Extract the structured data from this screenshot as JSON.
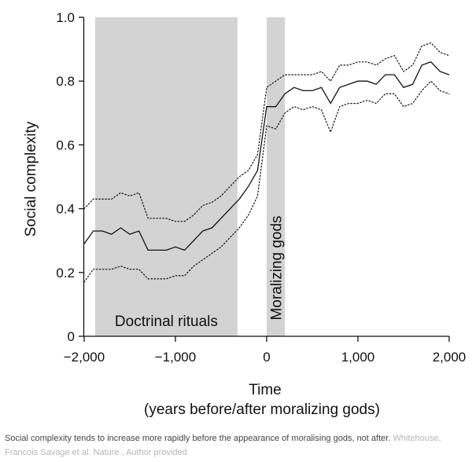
{
  "chart_data": {
    "type": "line",
    "title": "",
    "xlabel": "Time",
    "xlabel_sub": "(years before/after moralizing gods)",
    "ylabel": "Social complexity",
    "xlim": [
      -2000,
      2000
    ],
    "ylim": [
      0,
      1.0
    ],
    "xticks": [
      -2000,
      -1000,
      0,
      1000,
      2000
    ],
    "xtick_labels": [
      "−2,000",
      "−1,000",
      "0",
      "1,000",
      "2,000"
    ],
    "yticks": [
      0,
      0.2,
      0.4,
      0.6,
      0.8,
      1.0
    ],
    "ytick_labels": [
      "0",
      "0.2",
      "0.4",
      "0.6",
      "0.8",
      "1.0"
    ],
    "grid": false,
    "shaded_regions": [
      {
        "label": "Doctrinal rituals",
        "x_start": -1880,
        "x_end": -320,
        "color": "#d3d3d3"
      },
      {
        "label": "Moralizing gods",
        "x_start": 0,
        "x_end": 200,
        "color": "#d3d3d3"
      }
    ],
    "series": [
      {
        "style": "solid",
        "x": [
          -2000,
          -1900,
          -1800,
          -1700,
          -1600,
          -1500,
          -1400,
          -1300,
          -1200,
          -1100,
          -1000,
          -900,
          -800,
          -700,
          -600,
          -500,
          -400,
          -300,
          -200,
          -100,
          0,
          100,
          200,
          300,
          400,
          500,
          600,
          700,
          800,
          900,
          1000,
          1100,
          1200,
          1300,
          1400,
          1500,
          1600,
          1700,
          1800,
          1900,
          2000
        ],
        "values": [
          0.29,
          0.33,
          0.33,
          0.32,
          0.34,
          0.32,
          0.33,
          0.27,
          0.27,
          0.27,
          0.28,
          0.27,
          0.3,
          0.33,
          0.34,
          0.37,
          0.4,
          0.43,
          0.47,
          0.52,
          0.72,
          0.72,
          0.76,
          0.78,
          0.77,
          0.77,
          0.78,
          0.73,
          0.78,
          0.79,
          0.8,
          0.8,
          0.79,
          0.82,
          0.82,
          0.78,
          0.79,
          0.85,
          0.86,
          0.83,
          0.82
        ]
      },
      {
        "style": "dotted",
        "x": [
          -2000,
          -1900,
          -1800,
          -1700,
          -1600,
          -1500,
          -1400,
          -1300,
          -1200,
          -1100,
          -1000,
          -900,
          -800,
          -700,
          -600,
          -500,
          -400,
          -300,
          -200,
          -100,
          0,
          100,
          200,
          300,
          400,
          500,
          600,
          700,
          800,
          900,
          1000,
          1100,
          1200,
          1300,
          1400,
          1500,
          1600,
          1700,
          1800,
          1900,
          2000
        ],
        "values": [
          0.4,
          0.43,
          0.43,
          0.43,
          0.45,
          0.44,
          0.45,
          0.37,
          0.37,
          0.37,
          0.36,
          0.36,
          0.38,
          0.41,
          0.42,
          0.44,
          0.47,
          0.5,
          0.52,
          0.57,
          0.78,
          0.8,
          0.82,
          0.82,
          0.82,
          0.82,
          0.83,
          0.8,
          0.85,
          0.85,
          0.86,
          0.86,
          0.85,
          0.87,
          0.88,
          0.83,
          0.85,
          0.91,
          0.92,
          0.89,
          0.88
        ]
      },
      {
        "style": "dotted",
        "x": [
          -2000,
          -1900,
          -1800,
          -1700,
          -1600,
          -1500,
          -1400,
          -1300,
          -1200,
          -1100,
          -1000,
          -900,
          -800,
          -700,
          -600,
          -500,
          -400,
          -300,
          -200,
          -100,
          0,
          100,
          200,
          300,
          400,
          500,
          600,
          700,
          800,
          900,
          1000,
          1100,
          1200,
          1300,
          1400,
          1500,
          1600,
          1700,
          1800,
          1900,
          2000
        ],
        "values": [
          0.17,
          0.21,
          0.21,
          0.21,
          0.22,
          0.21,
          0.21,
          0.18,
          0.18,
          0.18,
          0.19,
          0.19,
          0.22,
          0.24,
          0.26,
          0.28,
          0.31,
          0.34,
          0.38,
          0.44,
          0.66,
          0.65,
          0.7,
          0.72,
          0.71,
          0.72,
          0.71,
          0.64,
          0.72,
          0.73,
          0.73,
          0.74,
          0.73,
          0.76,
          0.76,
          0.72,
          0.73,
          0.77,
          0.8,
          0.77,
          0.76
        ]
      }
    ]
  },
  "caption": {
    "text": "Social complexity tends to increase more rapidly before the appearance of moralising gods, not after. ",
    "credit": "Whitehouse, Francois Savage et al. Nature., Author provided"
  }
}
